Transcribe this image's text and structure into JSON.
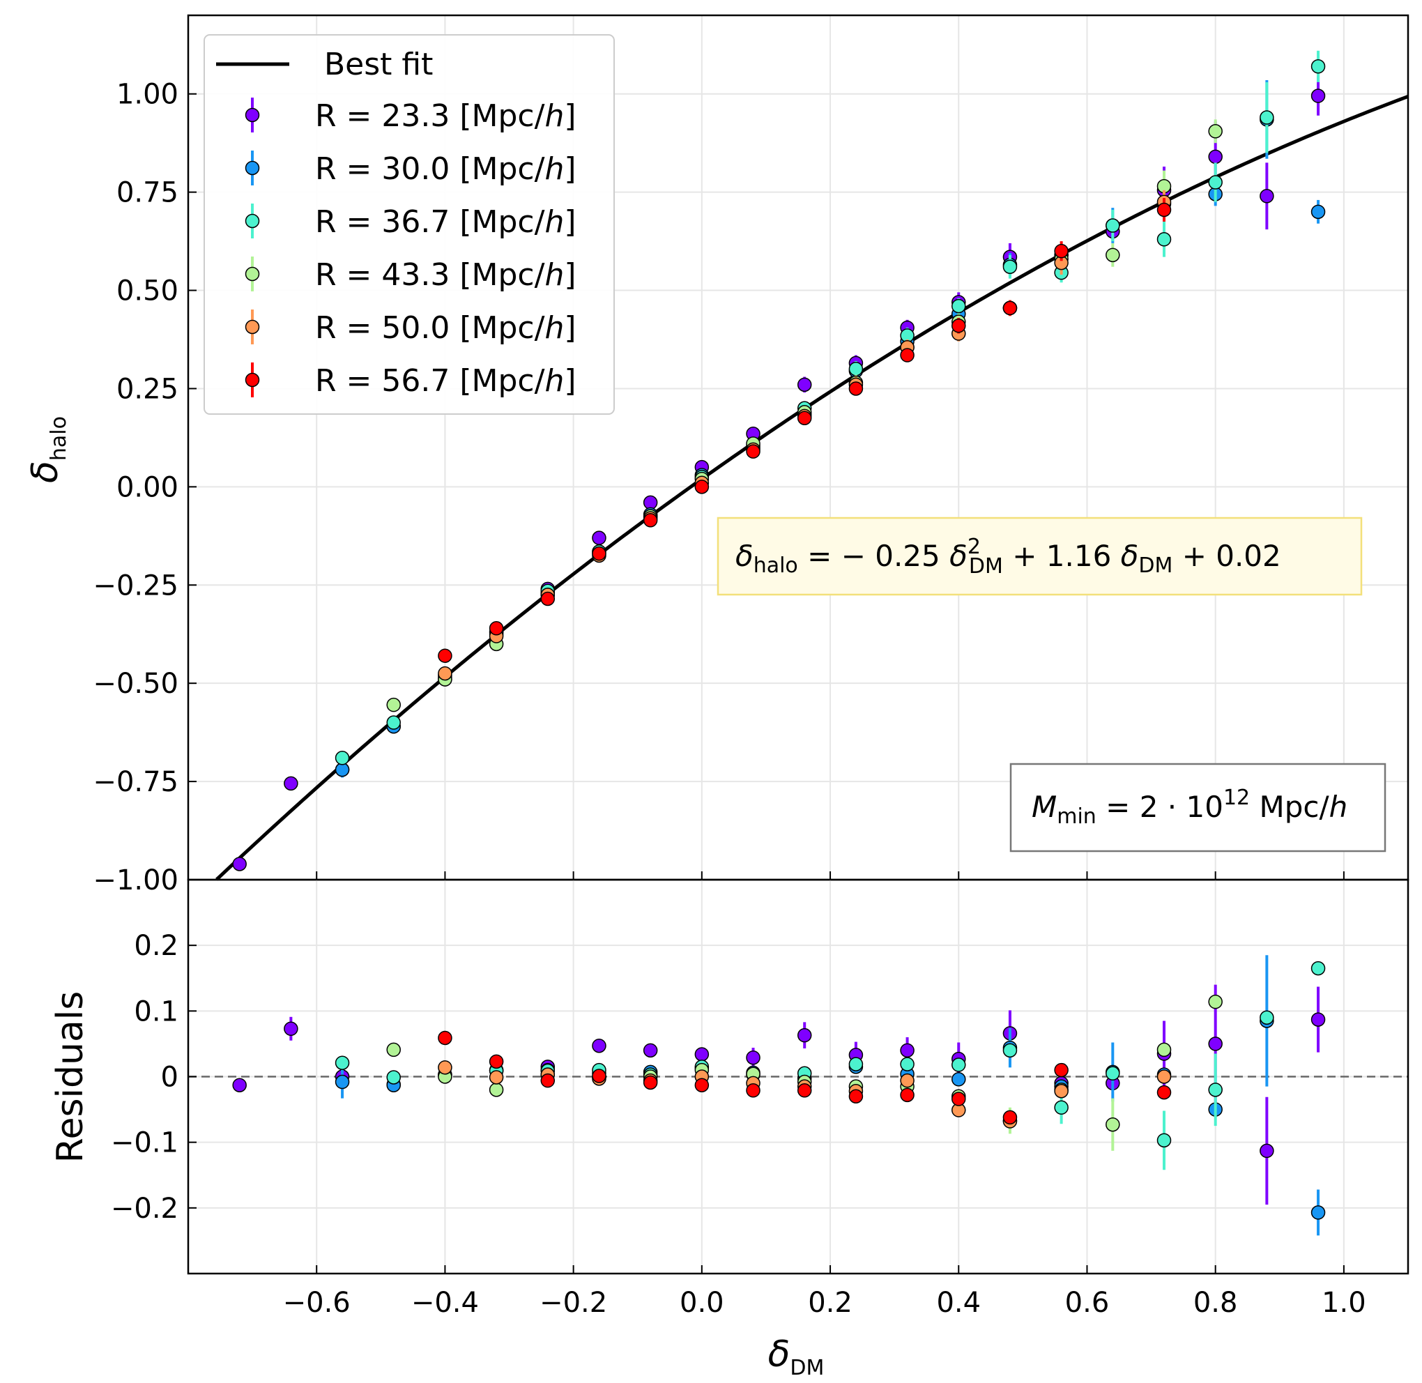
{
  "chart_data": {
    "type": "scatter",
    "title": "",
    "xlabel": "δDM",
    "xlabel_parts": {
      "symbol": "δ",
      "sub": "DM"
    },
    "xlim": [
      -0.8,
      1.1
    ],
    "top_panel": {
      "ylabel": "δhalo",
      "ylabel_parts": {
        "symbol": "δ",
        "sub": "halo"
      },
      "ylim": [
        -1.0,
        1.2
      ],
      "yticks": [
        1.0,
        0.75,
        0.5,
        0.25,
        0.0,
        -0.25,
        -0.5,
        -0.75,
        -1.0
      ],
      "ytick_labels": [
        "1.00",
        "0.75",
        "0.50",
        "0.25",
        "0.00",
        "−0.25",
        "−0.50",
        "−0.75",
        "−1.00"
      ]
    },
    "bottom_panel": {
      "ylabel": "Residuals",
      "ylim": [
        -0.3,
        0.3
      ],
      "yticks": [
        0.2,
        0.1,
        0.0,
        -0.1,
        -0.2
      ],
      "ytick_labels": [
        "0.2",
        "0.1",
        "0",
        "−0.1",
        "−0.2"
      ],
      "zero_line": 0
    },
    "xticks": [
      -0.6,
      -0.4,
      -0.2,
      0.0,
      0.2,
      0.4,
      0.6,
      0.8,
      1.0
    ],
    "xtick_labels": [
      "−0.6",
      "−0.4",
      "−0.2",
      "0.0",
      "0.2",
      "0.4",
      "0.6",
      "0.8",
      "1.0"
    ],
    "grid": true,
    "fit": {
      "label": "Best fit",
      "a": -0.25,
      "b": 1.16,
      "c": 0.02,
      "color": "#000000",
      "equation_parts": {
        "lhs_symbol": "δ",
        "lhs_sub": "halo",
        "eq": " = − 0.25 ",
        "t1_symbol": "δ",
        "t1_sup": "2",
        "t1_sub": "DM",
        "plus1": " + 1.16 ",
        "t2_symbol": "δ",
        "t2_sub": "DM",
        "plus2": " + 0.02"
      }
    },
    "mass_annotation": {
      "symbol": "M",
      "sub": "min",
      "eq": " = 2 · 10",
      "sup": "12",
      "unit": " Mpc/",
      "unit_italic": "h"
    },
    "legend_position": "upper-left",
    "series": [
      {
        "name": "R = 23.3 [Mpc/h]",
        "label_main": "R = 23.3 [Mpc/",
        "label_italic": "h",
        "label_end": "]",
        "color": "#7f00ff",
        "x": [
          -0.72,
          -0.64,
          -0.56,
          -0.48,
          -0.4,
          -0.32,
          -0.24,
          -0.16,
          -0.08,
          0.0,
          0.08,
          0.16,
          0.24,
          0.32,
          0.4,
          0.48,
          0.56,
          0.64,
          0.72,
          0.8,
          0.88,
          0.96
        ],
        "y": [
          -0.96,
          -0.755,
          -0.72,
          -0.61,
          -0.49,
          -0.37,
          -0.26,
          -0.13,
          -0.04,
          0.05,
          0.135,
          0.26,
          0.315,
          0.405,
          0.47,
          0.585,
          0.59,
          0.65,
          0.755,
          0.84,
          0.74,
          0.995
        ],
        "err": [
          0.01,
          0.01,
          0.01,
          0.01,
          0.01,
          0.01,
          0.01,
          0.01,
          0.01,
          0.01,
          0.015,
          0.02,
          0.02,
          0.02,
          0.025,
          0.035,
          0.02,
          0.02,
          0.06,
          0.09,
          0.085,
          0.05
        ],
        "res": [
          -0.013,
          0.073,
          0.0,
          -0.012,
          0.003,
          0.009,
          0.015,
          0.047,
          0.04,
          0.034,
          0.029,
          0.063,
          0.033,
          0.04,
          0.027,
          0.066,
          -0.01,
          -0.01,
          0.035,
          0.05,
          -0.113,
          0.087
        ],
        "res_err": [
          0.0,
          0.018,
          0.0,
          0.0,
          0.0,
          0.0,
          0.0,
          0.0,
          0.0,
          0.0,
          0.015,
          0.02,
          0.02,
          0.02,
          0.025,
          0.035,
          0.0,
          0.0,
          0.05,
          0.09,
          0.082,
          0.05
        ]
      },
      {
        "name": "R = 30.0 [Mpc/h]",
        "label_main": "R = 30.0 [Mpc/",
        "label_italic": "h",
        "label_end": "]",
        "color": "#1996f3",
        "x": [
          -0.56,
          -0.48,
          -0.4,
          -0.32,
          -0.24,
          -0.16,
          -0.08,
          0.0,
          0.08,
          0.16,
          0.24,
          0.32,
          0.4,
          0.48,
          0.56,
          0.64,
          0.72,
          0.8,
          0.88,
          0.96
        ],
        "y": [
          -0.72,
          -0.61,
          -0.48,
          -0.37,
          -0.27,
          -0.165,
          -0.07,
          0.03,
          0.105,
          0.185,
          0.295,
          0.37,
          0.44,
          0.565,
          0.59,
          0.665,
          0.72,
          0.745,
          0.935,
          0.7
        ],
        "err": [
          0.02,
          0.01,
          0.01,
          0.01,
          0.01,
          0.01,
          0.01,
          0.01,
          0.015,
          0.015,
          0.02,
          0.02,
          0.025,
          0.03,
          0.02,
          0.045,
          0.05,
          0.03,
          0.1,
          0.03
        ],
        "res": [
          -0.008,
          -0.013,
          0.003,
          0.01,
          0.01,
          0.005,
          0.007,
          0.013,
          0.006,
          -0.003,
          0.015,
          0.004,
          -0.004,
          0.044,
          -0.015,
          0.007,
          0.003,
          -0.05,
          0.085,
          -0.207
        ],
        "res_err": [
          0.025,
          0.0,
          0.0,
          0.0,
          0.0,
          0.0,
          0.0,
          0.0,
          0.0,
          0.0,
          0.0,
          0.0,
          0.0,
          0.03,
          0.0,
          0.045,
          0.0,
          0.0,
          0.1,
          0.035
        ]
      },
      {
        "name": "R = 36.7 [Mpc/h]",
        "label_main": "R = 36.7 [Mpc/",
        "label_italic": "h",
        "label_end": "]",
        "color": "#4cf2ce",
        "x": [
          -0.56,
          -0.48,
          -0.4,
          -0.32,
          -0.24,
          -0.16,
          -0.08,
          0.0,
          0.08,
          0.16,
          0.24,
          0.32,
          0.4,
          0.48,
          0.56,
          0.64,
          0.72,
          0.8,
          0.88,
          0.96
        ],
        "y": [
          -0.69,
          -0.6,
          -0.485,
          -0.375,
          -0.265,
          -0.165,
          -0.075,
          0.025,
          0.1,
          0.2,
          0.3,
          0.385,
          0.46,
          0.56,
          0.545,
          0.665,
          0.63,
          0.775,
          0.94,
          1.07
        ],
        "err": [
          0.01,
          0.01,
          0.01,
          0.01,
          0.01,
          0.01,
          0.01,
          0.01,
          0.015,
          0.015,
          0.02,
          0.02,
          0.02,
          0.03,
          0.025,
          0.04,
          0.045,
          0.05,
          0.09,
          0.04
        ],
        "res": [
          0.021,
          -0.001,
          0.002,
          0.009,
          0.009,
          0.01,
          0.003,
          0.015,
          0.003,
          0.005,
          0.019,
          0.019,
          0.018,
          0.04,
          -0.047,
          0.005,
          -0.097,
          -0.02,
          0.09,
          0.165
        ],
        "res_err": [
          0.0,
          0.0,
          0.0,
          0.0,
          0.0,
          0.0,
          0.0,
          0.0,
          0.0,
          0.0,
          0.0,
          0.0,
          0.0,
          0.0,
          0.025,
          0.0,
          0.045,
          0.055,
          0.0,
          0.0
        ]
      },
      {
        "name": "R = 43.3 [Mpc/h]",
        "label_main": "R = 43.3 [Mpc/",
        "label_italic": "h",
        "label_end": "]",
        "color": "#b2f396",
        "x": [
          -0.48,
          -0.4,
          -0.32,
          -0.24,
          -0.16,
          -0.08,
          0.0,
          0.08,
          0.16,
          0.24,
          0.32,
          0.4,
          0.48,
          0.56,
          0.64,
          0.72,
          0.8
        ],
        "y": [
          -0.555,
          -0.49,
          -0.4,
          -0.275,
          -0.17,
          -0.075,
          0.02,
          0.11,
          0.19,
          0.265,
          0.355,
          0.42,
          0.455,
          0.58,
          0.59,
          0.765,
          0.905
        ],
        "err": [
          0.01,
          0.01,
          0.01,
          0.01,
          0.01,
          0.01,
          0.01,
          0.01,
          0.015,
          0.02,
          0.02,
          0.02,
          0.02,
          0.02,
          0.03,
          0.04,
          0.03
        ],
        "res": [
          0.041,
          0.0,
          -0.02,
          0.003,
          -0.001,
          0.0,
          0.01,
          0.004,
          -0.008,
          -0.015,
          -0.015,
          -0.03,
          -0.067,
          -0.02,
          -0.073,
          0.041,
          0.114
        ],
        "res_err": [
          0.0,
          0.0,
          0.0,
          0.0,
          0.0,
          0.0,
          0.0,
          0.0,
          0.0,
          0.0,
          0.0,
          0.0,
          0.02,
          0.0,
          0.04,
          0.0,
          0.0
        ]
      },
      {
        "name": "R = 50.0 [Mpc/h]",
        "label_main": "R = 50.0 [Mpc/",
        "label_italic": "h",
        "label_end": "]",
        "color": "#ff9955",
        "x": [
          -0.4,
          -0.32,
          -0.24,
          -0.16,
          -0.08,
          0.0,
          0.08,
          0.16,
          0.24,
          0.32,
          0.4,
          0.48,
          0.56,
          0.72
        ],
        "y": [
          -0.475,
          -0.38,
          -0.275,
          -0.175,
          -0.08,
          0.01,
          0.095,
          0.18,
          0.26,
          0.355,
          0.39,
          0.455,
          0.57,
          0.725
        ],
        "err": [
          0.01,
          0.01,
          0.01,
          0.01,
          0.01,
          0.01,
          0.01,
          0.015,
          0.02,
          0.02,
          0.02,
          0.02,
          0.03,
          0.03
        ],
        "res": [
          0.014,
          -0.001,
          0.003,
          -0.003,
          -0.006,
          0.0,
          -0.01,
          -0.015,
          -0.022,
          -0.006,
          -0.051,
          -0.068,
          -0.022,
          0.0
        ],
        "res_err": [
          0.0,
          0.0,
          0.0,
          0.0,
          0.0,
          0.0,
          0.0,
          0.0,
          0.0,
          0.0,
          0.0,
          0.0,
          0.0,
          0.0
        ]
      },
      {
        "name": "R = 56.7 [Mpc/h]",
        "label_main": "R = 56.7 [Mpc/",
        "label_italic": "h",
        "label_end": "]",
        "color": "#ff0000",
        "x": [
          -0.4,
          -0.32,
          -0.24,
          -0.16,
          -0.08,
          0.0,
          0.08,
          0.16,
          0.24,
          0.32,
          0.4,
          0.48,
          0.56,
          0.72
        ],
        "y": [
          -0.43,
          -0.36,
          -0.285,
          -0.17,
          -0.085,
          0.0,
          0.09,
          0.175,
          0.25,
          0.335,
          0.41,
          0.455,
          0.6,
          0.705
        ],
        "err": [
          0.01,
          0.01,
          0.01,
          0.01,
          0.01,
          0.01,
          0.01,
          0.01,
          0.015,
          0.015,
          0.02,
          0.02,
          0.025,
          0.03
        ],
        "res": [
          0.059,
          0.023,
          -0.006,
          0.001,
          -0.009,
          -0.013,
          -0.021,
          -0.021,
          -0.03,
          -0.028,
          -0.034,
          -0.062,
          0.01,
          -0.024
        ],
        "res_err": [
          0.0,
          0.0,
          0.0,
          0.0,
          0.0,
          0.0,
          0.0,
          0.0,
          0.0,
          0.0,
          0.0,
          0.0,
          0.0,
          0.0
        ]
      }
    ]
  }
}
